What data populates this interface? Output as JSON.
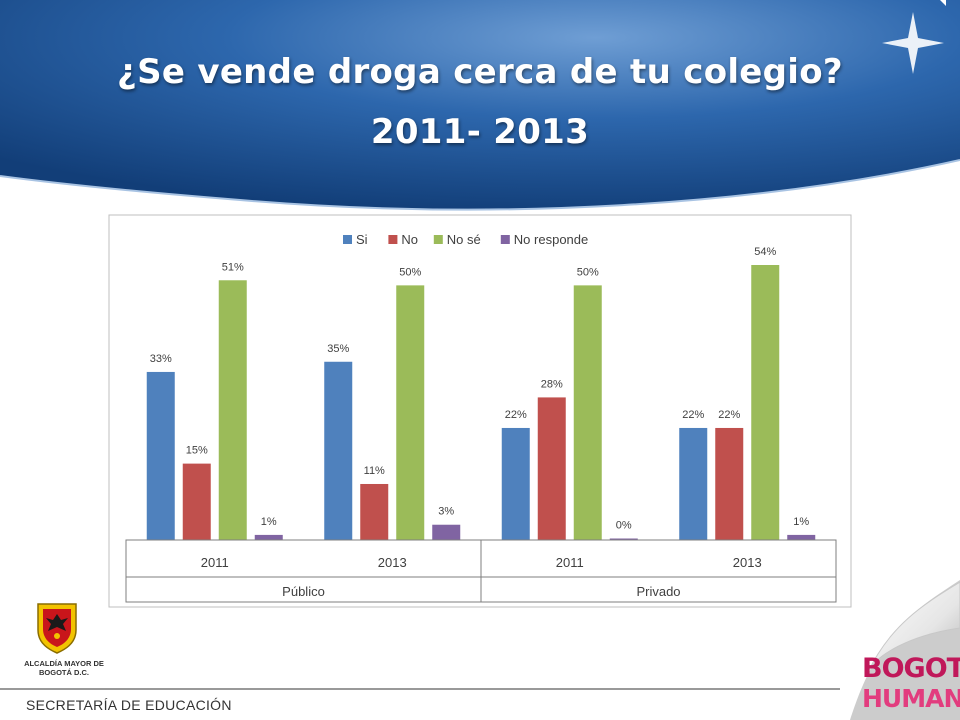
{
  "slide": {
    "title_line1": "¿Se vende droga cerca de tu colegio?",
    "title_line2": "2011- 2013",
    "footer": "SECRETARÍA DE EDUCACIÓN",
    "logo_left_text": "ALCALDÍA MAYOR DE BOGOTÁ D.C.",
    "logo_right_line1": "BOGOTÁ",
    "logo_right_line2": "HUMANA",
    "colors": {
      "banner": "#1f5597",
      "title": "#ffffff"
    }
  },
  "chart_data": {
    "type": "bar",
    "title": "",
    "categories": [
      "2011",
      "2013",
      "2011",
      "2013"
    ],
    "groups": [
      {
        "label": "Público",
        "span": 2
      },
      {
        "label": "Privado",
        "span": 2
      }
    ],
    "series": [
      {
        "name": "Si",
        "color": "#4f81bd",
        "values": [
          33,
          35,
          22,
          22
        ],
        "labels": [
          "33%",
          "35%",
          "22%",
          "22%"
        ]
      },
      {
        "name": "No",
        "color": "#c0504d",
        "values": [
          15,
          11,
          28,
          22
        ],
        "labels": [
          "15%",
          "11%",
          "28%",
          "22%"
        ]
      },
      {
        "name": "No sé",
        "color": "#9bbb59",
        "values": [
          51,
          50,
          50,
          54
        ],
        "labels": [
          "51%",
          "50%",
          "50%",
          "54%"
        ]
      },
      {
        "name": "No responde",
        "color": "#8064a2",
        "values": [
          1,
          3,
          0,
          1
        ],
        "labels": [
          "1%",
          "3%",
          "0%",
          "1%"
        ]
      }
    ],
    "ylim": [
      0,
      54
    ],
    "legend": "top",
    "grid": false
  }
}
